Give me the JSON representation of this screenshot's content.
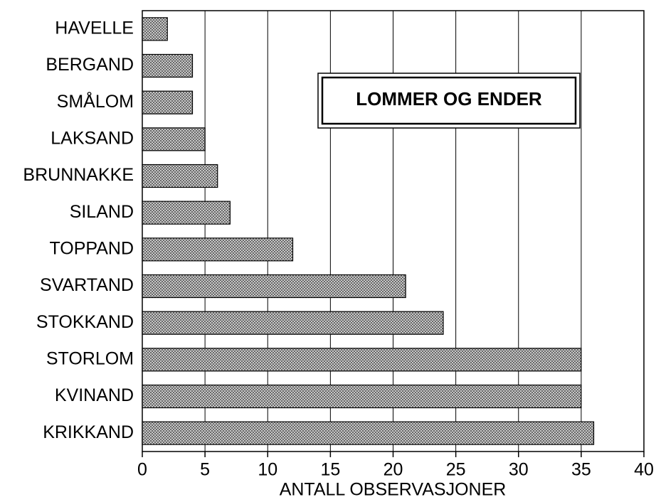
{
  "chart_data": {
    "type": "bar",
    "orientation": "horizontal",
    "title": "LOMMER OG ENDER",
    "xlabel": "ANTALL OBSERVASJONER",
    "categories": [
      "HAVELLE",
      "BERGAND",
      "SMÅLOM",
      "LAKSAND",
      "BRUNNAKKE",
      "SILAND",
      "TOPPAND",
      "SVARTAND",
      "STOKKAND",
      "STORLOM",
      "KVINAND",
      "KRIKKAND"
    ],
    "values": [
      2,
      4,
      4,
      5,
      6,
      7,
      12,
      21,
      24,
      35,
      35,
      36
    ],
    "color": "#555555",
    "xlim": [
      0,
      40
    ],
    "xticks": [
      0,
      5,
      10,
      15,
      20,
      25,
      30,
      35,
      40
    ],
    "grid": true
  }
}
